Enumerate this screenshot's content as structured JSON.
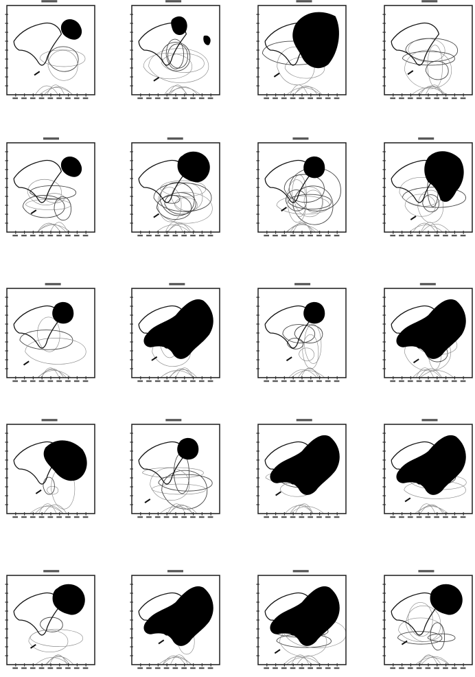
{
  "figure": {
    "rows": 5,
    "cols": 4,
    "panels": [
      {
        "blob": "small-ne",
        "contours": "sparse"
      },
      {
        "blob": "small-ne-2",
        "contours": "medium"
      },
      {
        "blob": "large-center",
        "contours": "sparse"
      },
      {
        "blob": "none",
        "contours": "medium"
      },
      {
        "blob": "small-ne",
        "contours": "medium"
      },
      {
        "blob": "medium-ne",
        "contours": "dense"
      },
      {
        "blob": "small-round",
        "contours": "dense"
      },
      {
        "blob": "large-ne",
        "contours": "medium"
      },
      {
        "blob": "small-round",
        "contours": "sparse"
      },
      {
        "blob": "large-wide",
        "contours": "sparse"
      },
      {
        "blob": "small-round",
        "contours": "medium"
      },
      {
        "blob": "large-wide",
        "contours": "medium"
      },
      {
        "blob": "medium-center",
        "contours": "sparse"
      },
      {
        "blob": "small-round",
        "contours": "medium"
      },
      {
        "blob": "large-wide",
        "contours": "sparse"
      },
      {
        "blob": "large-wide",
        "contours": "sparse"
      },
      {
        "blob": "medium-ne",
        "contours": "sparse"
      },
      {
        "blob": "large-wide",
        "contours": "sparse"
      },
      {
        "blob": "large-wide",
        "contours": "medium"
      },
      {
        "blob": "medium-ne",
        "contours": "medium"
      }
    ]
  }
}
